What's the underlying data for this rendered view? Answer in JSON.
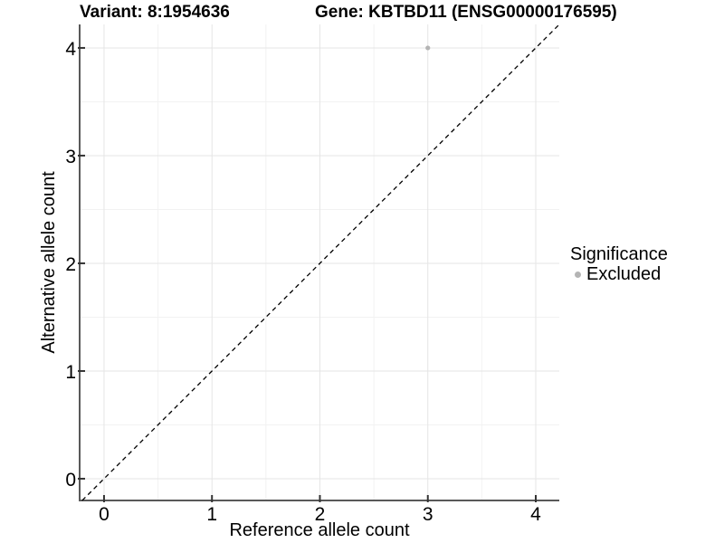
{
  "titles": {
    "variant": "Variant: 8:1954636",
    "gene": "Gene: KBTBD11 (ENSG00000176595)"
  },
  "legend": {
    "title": "Significance",
    "items": [
      {
        "label": "Excluded",
        "color": "#b4b4b4"
      }
    ]
  },
  "chart_data": {
    "type": "scatter",
    "title": "Variant: 8:1954636   Gene: KBTBD11 (ENSG00000176595)",
    "xlabel": "Reference allele count",
    "ylabel": "Alternative allele count",
    "xlim": [
      -0.226,
      4.218
    ],
    "ylim": [
      -0.202,
      4.218
    ],
    "x_ticks": [
      0,
      1,
      2,
      3,
      4
    ],
    "y_ticks": [
      0,
      1,
      2,
      3,
      4
    ],
    "grid": "major+minor",
    "minor_ticks": [
      0.5,
      1.5,
      2.5,
      3.5
    ],
    "series": [
      {
        "name": "Excluded",
        "color": "#b4b4b4",
        "points": [
          {
            "x": 3,
            "y": 4
          }
        ]
      }
    ],
    "reference_line": {
      "type": "identity",
      "style": "dashed",
      "color": "#000000"
    },
    "style_colors": {
      "grid_major": "#e5e5e5",
      "grid_minor": "#f2f2f2",
      "axis_line": "#595959",
      "tick_mark": "#333333",
      "text": "#000000"
    }
  }
}
